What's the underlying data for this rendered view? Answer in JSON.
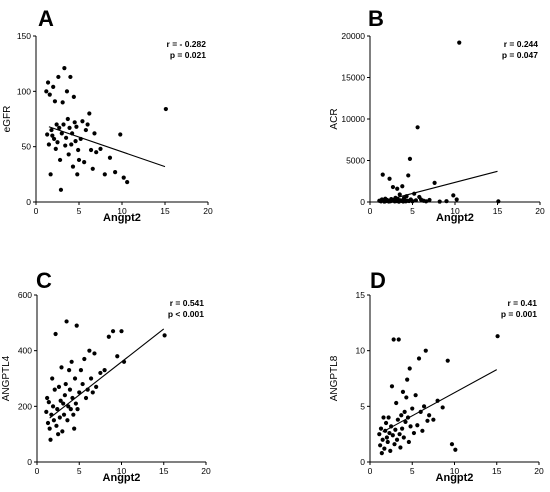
{
  "chart_data": [
    {
      "type": "scatter",
      "panel": "A",
      "xlabel": "Angpt2",
      "ylabel": "eGFR",
      "xlim": [
        0,
        20
      ],
      "ylim": [
        0,
        150
      ],
      "xticks": [
        0,
        5,
        10,
        15,
        20
      ],
      "yticks": [
        0,
        50,
        100,
        150
      ],
      "stats": {
        "r": "r = - 0.282",
        "p": "p = 0.021"
      },
      "regression": {
        "x": [
          1.5,
          15
        ],
        "y": [
          68,
          32
        ]
      },
      "points": [
        [
          1.2,
          100
        ],
        [
          1.3,
          61
        ],
        [
          1.4,
          108
        ],
        [
          1.5,
          52
        ],
        [
          1.6,
          97
        ],
        [
          1.7,
          25
        ],
        [
          1.8,
          65
        ],
        [
          1.9,
          60
        ],
        [
          2.0,
          104
        ],
        [
          2.1,
          57
        ],
        [
          2.2,
          91
        ],
        [
          2.3,
          48
        ],
        [
          2.4,
          70
        ],
        [
          2.5,
          54
        ],
        [
          2.6,
          113
        ],
        [
          2.7,
          67
        ],
        [
          2.8,
          38
        ],
        [
          2.9,
          11
        ],
        [
          3.0,
          62
        ],
        [
          3.1,
          90
        ],
        [
          3.2,
          70
        ],
        [
          3.3,
          121
        ],
        [
          3.4,
          51
        ],
        [
          3.5,
          58
        ],
        [
          3.6,
          100
        ],
        [
          3.7,
          75
        ],
        [
          3.8,
          43
        ],
        [
          3.9,
          67
        ],
        [
          4.0,
          113
        ],
        [
          4.1,
          52
        ],
        [
          4.2,
          62
        ],
        [
          4.3,
          32
        ],
        [
          4.4,
          95
        ],
        [
          4.5,
          72
        ],
        [
          4.6,
          55
        ],
        [
          4.7,
          68
        ],
        [
          4.8,
          25
        ],
        [
          4.9,
          47
        ],
        [
          5.0,
          38
        ],
        [
          5.2,
          57
        ],
        [
          5.4,
          73
        ],
        [
          5.6,
          36
        ],
        [
          5.8,
          65
        ],
        [
          6.0,
          70
        ],
        [
          6.2,
          80
        ],
        [
          6.4,
          47
        ],
        [
          6.6,
          30
        ],
        [
          6.8,
          62
        ],
        [
          7.0,
          45
        ],
        [
          7.5,
          48
        ],
        [
          8.0,
          25
        ],
        [
          8.6,
          40
        ],
        [
          9.2,
          27
        ],
        [
          9.8,
          61
        ],
        [
          10.2,
          22
        ],
        [
          10.6,
          18
        ],
        [
          15.1,
          84
        ]
      ]
    },
    {
      "type": "scatter",
      "panel": "B",
      "xlabel": "Angpt2",
      "ylabel": "ACR",
      "xlim": [
        0,
        20
      ],
      "ylim": [
        0,
        20000
      ],
      "xticks": [
        0,
        5,
        10,
        15,
        20
      ],
      "yticks": [
        0,
        5000,
        10000,
        15000,
        20000
      ],
      "stats": {
        "r": "r = 0.244",
        "p": "p = 0.047"
      },
      "regression": {
        "x": [
          1.5,
          15
        ],
        "y": [
          100,
          3700
        ]
      },
      "points": [
        [
          1.1,
          150
        ],
        [
          1.3,
          80
        ],
        [
          1.4,
          300
        ],
        [
          1.5,
          3300
        ],
        [
          1.6,
          200
        ],
        [
          1.7,
          50
        ],
        [
          1.8,
          400
        ],
        [
          1.9,
          120
        ],
        [
          2.0,
          250
        ],
        [
          2.1,
          180
        ],
        [
          2.2,
          60
        ],
        [
          2.3,
          2800
        ],
        [
          2.4,
          90
        ],
        [
          2.5,
          350
        ],
        [
          2.6,
          150
        ],
        [
          2.7,
          1800
        ],
        [
          2.8,
          220
        ],
        [
          2.9,
          70
        ],
        [
          3.0,
          500
        ],
        [
          3.1,
          110
        ],
        [
          3.2,
          1600
        ],
        [
          3.3,
          300
        ],
        [
          3.4,
          40
        ],
        [
          3.5,
          900
        ],
        [
          3.6,
          200
        ],
        [
          3.7,
          130
        ],
        [
          3.8,
          1900
        ],
        [
          3.9,
          60
        ],
        [
          4.0,
          450
        ],
        [
          4.1,
          250
        ],
        [
          4.2,
          80
        ],
        [
          4.3,
          700
        ],
        [
          4.4,
          150
        ],
        [
          4.5,
          3200
        ],
        [
          4.6,
          120
        ],
        [
          4.7,
          5200
        ],
        [
          4.8,
          300
        ],
        [
          5.0,
          90
        ],
        [
          5.2,
          1000
        ],
        [
          5.4,
          200
        ],
        [
          5.6,
          9000
        ],
        [
          5.8,
          600
        ],
        [
          6.0,
          300
        ],
        [
          6.3,
          150
        ],
        [
          6.6,
          80
        ],
        [
          7.0,
          250
        ],
        [
          7.6,
          2300
        ],
        [
          8.2,
          50
        ],
        [
          9.0,
          100
        ],
        [
          9.8,
          800
        ],
        [
          10.2,
          300
        ],
        [
          10.5,
          19200
        ],
        [
          15.1,
          80
        ]
      ]
    },
    {
      "type": "scatter",
      "panel": "C",
      "xlabel": "Angpt2",
      "ylabel": "ANGPTL4",
      "xlim": [
        0,
        20
      ],
      "ylim": [
        0,
        600
      ],
      "xticks": [
        0,
        5,
        10,
        15,
        20
      ],
      "yticks": [
        0,
        200,
        400,
        600
      ],
      "stats": {
        "r": "r = 0.541",
        "p": "p < 0.001"
      },
      "regression": {
        "x": [
          1.5,
          15
        ],
        "y": [
          158,
          478
        ]
      },
      "points": [
        [
          1.1,
          180
        ],
        [
          1.2,
          230
        ],
        [
          1.3,
          140
        ],
        [
          1.4,
          215
        ],
        [
          1.5,
          120
        ],
        [
          1.6,
          80
        ],
        [
          1.7,
          170
        ],
        [
          1.8,
          300
        ],
        [
          1.9,
          200
        ],
        [
          2.0,
          150
        ],
        [
          2.1,
          260
        ],
        [
          2.2,
          460
        ],
        [
          2.3,
          130
        ],
        [
          2.4,
          190
        ],
        [
          2.5,
          100
        ],
        [
          2.6,
          270
        ],
        [
          2.7,
          160
        ],
        [
          2.8,
          220
        ],
        [
          2.9,
          340
        ],
        [
          3.0,
          110
        ],
        [
          3.1,
          210
        ],
        [
          3.2,
          170
        ],
        [
          3.3,
          240
        ],
        [
          3.4,
          280
        ],
        [
          3.5,
          505
        ],
        [
          3.6,
          150
        ],
        [
          3.7,
          200
        ],
        [
          3.8,
          330
        ],
        [
          3.9,
          260
        ],
        [
          4.0,
          190
        ],
        [
          4.1,
          360
        ],
        [
          4.2,
          230
        ],
        [
          4.3,
          170
        ],
        [
          4.4,
          120
        ],
        [
          4.5,
          300
        ],
        [
          4.6,
          210
        ],
        [
          4.7,
          490
        ],
        [
          4.8,
          190
        ],
        [
          5.0,
          250
        ],
        [
          5.2,
          330
        ],
        [
          5.4,
          280
        ],
        [
          5.6,
          370
        ],
        [
          5.8,
          230
        ],
        [
          6.0,
          260
        ],
        [
          6.2,
          400
        ],
        [
          6.4,
          300
        ],
        [
          6.6,
          250
        ],
        [
          6.8,
          390
        ],
        [
          7.0,
          270
        ],
        [
          7.5,
          320
        ],
        [
          8.0,
          330
        ],
        [
          8.5,
          450
        ],
        [
          9.0,
          470
        ],
        [
          9.5,
          380
        ],
        [
          10.0,
          470
        ],
        [
          10.3,
          360
        ],
        [
          15.1,
          455
        ]
      ]
    },
    {
      "type": "scatter",
      "panel": "D",
      "xlabel": "Angpt2",
      "ylabel": "ANGPTL8",
      "xlim": [
        0,
        20
      ],
      "ylim": [
        0,
        15
      ],
      "xticks": [
        0,
        5,
        10,
        15,
        20
      ],
      "yticks": [
        0,
        5,
        10,
        15
      ],
      "stats": {
        "r": "r = 0.41",
        "p": "p = 0.001"
      },
      "regression": {
        "x": [
          1.5,
          15
        ],
        "y": [
          2.7,
          8.3
        ]
      },
      "points": [
        [
          1.1,
          2.5
        ],
        [
          1.2,
          1.5
        ],
        [
          1.3,
          3.0
        ],
        [
          1.4,
          0.8
        ],
        [
          1.5,
          2.0
        ],
        [
          1.6,
          4.0
        ],
        [
          1.7,
          1.2
        ],
        [
          1.8,
          2.8
        ],
        [
          1.9,
          3.5
        ],
        [
          2.0,
          2.2
        ],
        [
          2.1,
          1.8
        ],
        [
          2.2,
          4.0
        ],
        [
          2.3,
          2.6
        ],
        [
          2.4,
          1.0
        ],
        [
          2.5,
          3.2
        ],
        [
          2.6,
          6.8
        ],
        [
          2.7,
          2.4
        ],
        [
          2.8,
          11.0
        ],
        [
          2.9,
          1.6
        ],
        [
          3.0,
          2.9
        ],
        [
          3.1,
          5.3
        ],
        [
          3.2,
          2.0
        ],
        [
          3.3,
          3.8
        ],
        [
          3.4,
          11.0
        ],
        [
          3.5,
          2.5
        ],
        [
          3.6,
          1.3
        ],
        [
          3.7,
          4.2
        ],
        [
          3.8,
          3.0
        ],
        [
          3.9,
          6.3
        ],
        [
          4.0,
          2.2
        ],
        [
          4.1,
          4.5
        ],
        [
          4.2,
          3.6
        ],
        [
          4.3,
          5.8
        ],
        [
          4.4,
          7.4
        ],
        [
          4.5,
          4.0
        ],
        [
          4.6,
          1.8
        ],
        [
          4.7,
          8.4
        ],
        [
          4.8,
          3.2
        ],
        [
          5.0,
          4.8
        ],
        [
          5.2,
          2.6
        ],
        [
          5.4,
          6.0
        ],
        [
          5.6,
          3.3
        ],
        [
          5.8,
          9.3
        ],
        [
          6.0,
          4.5
        ],
        [
          6.2,
          2.8
        ],
        [
          6.4,
          5.0
        ],
        [
          6.6,
          10.0
        ],
        [
          6.8,
          3.7
        ],
        [
          7.0,
          4.2
        ],
        [
          7.5,
          3.8
        ],
        [
          8.0,
          5.5
        ],
        [
          8.6,
          4.9
        ],
        [
          9.2,
          9.1
        ],
        [
          9.7,
          1.6
        ],
        [
          10.1,
          1.1
        ],
        [
          15.1,
          11.3
        ]
      ]
    }
  ]
}
